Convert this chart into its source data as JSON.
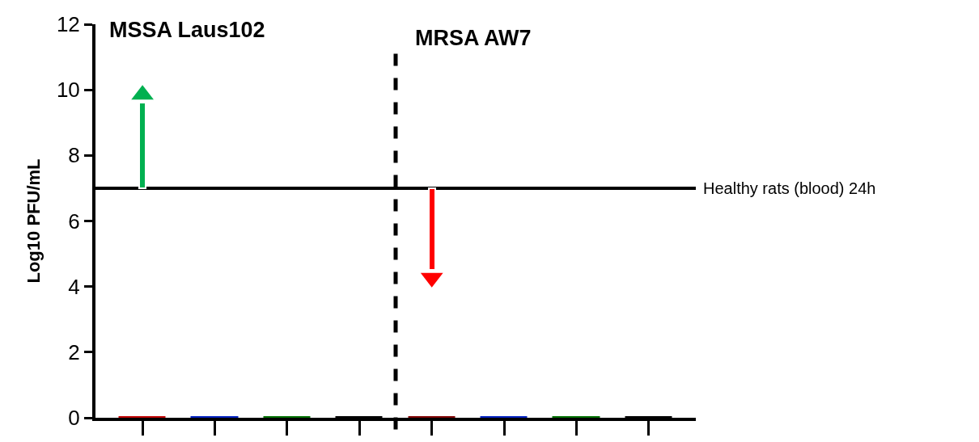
{
  "chart_data": {
    "type": "bar",
    "ylabel": "Log10 PFU/mL",
    "categories": [
      null,
      null,
      null,
      null,
      null,
      null,
      null,
      null
    ],
    "series": [
      {
        "colors": [
          "#c00000",
          "#0020c0",
          "#007000",
          "#000000",
          "#800000",
          "#0020c0",
          "#007000",
          "#000000"
        ],
        "values": [
          0,
          0,
          0,
          0,
          0,
          0,
          0,
          0
        ]
      },
      {
        "colors": [
          "#00b050",
          null,
          null,
          null,
          "#ff0000",
          null,
          null,
          null
        ],
        "base": [
          7,
          null,
          null,
          null,
          7,
          null,
          null,
          null
        ],
        "values": [
          2.6,
          null,
          null,
          null,
          -2.5,
          null,
          null,
          null
        ]
      },
      {
        "type": "scatter",
        "marker": "triangle",
        "colors": [
          "#00b050",
          null,
          null,
          null,
          "#ff0000",
          null,
          null,
          null
        ],
        "values": [
          9.85,
          null,
          null,
          null,
          4.27,
          null,
          null,
          null
        ]
      }
    ],
    "ylim": [
      0,
      12
    ],
    "yticks": [
      0,
      2,
      4,
      6,
      8,
      10,
      12
    ],
    "ref_lines": [
      {
        "axis": "y",
        "value": 7,
        "label": "Healthy rats (blood) 24h",
        "color": "#000000",
        "line_style": "solid"
      }
    ],
    "annotations": [
      "MSSA Laus102",
      "MRSA AW7"
    ],
    "tick_labels": "y",
    "grid": false
  }
}
